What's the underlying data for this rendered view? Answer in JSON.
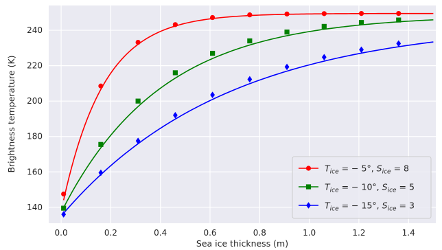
{
  "chart_data": {
    "type": "line",
    "xlabel": "Sea ice thickness (m)",
    "ylabel": "Brightness temperature (K)",
    "xlim": [
      -0.05,
      1.51
    ],
    "ylim": [
      131,
      254
    ],
    "xticks": [
      0.0,
      0.2,
      0.4,
      0.6,
      0.8,
      1.0,
      1.2,
      1.4
    ],
    "xtick_labels": [
      "0.0",
      "0.2",
      "0.4",
      "0.6",
      "0.8",
      "1.0",
      "1.2",
      "1.4"
    ],
    "yticks": [
      140,
      160,
      180,
      200,
      220,
      240
    ],
    "ytick_labels": [
      "140",
      "160",
      "180",
      "200",
      "220",
      "240"
    ],
    "grid": true,
    "legend_position": "lower-right",
    "series": [
      {
        "name": "T_ice = -5°, S_ice = 8",
        "name_parts": {
          "t": "T",
          "tsub": "ice",
          "tval": " = − 5°, ",
          "s": "S",
          "ssub": "ice",
          "sval": " = 8"
        },
        "color": "#ff0000",
        "marker": "circle",
        "x": [
          0.01,
          0.16,
          0.31,
          0.46,
          0.61,
          0.76,
          0.91,
          1.06,
          1.21,
          1.36
        ],
        "y": [
          147.5,
          208.5,
          233.2,
          243.2,
          247.2,
          248.7,
          249.2,
          249.4,
          249.5,
          249.5
        ],
        "curve": {
          "A": 249.5,
          "B": 112.0,
          "k": 6.0,
          "x_end": 1.5
        }
      },
      {
        "name": "T_ice = -10°, S_ice = 5",
        "name_parts": {
          "t": "T",
          "tsub": "ice",
          "tval": " = − 10°, ",
          "s": "S",
          "ssub": "ice",
          "sval": " = 5"
        },
        "color": "#008000",
        "marker": "square",
        "x": [
          0.01,
          0.16,
          0.31,
          0.46,
          0.61,
          0.76,
          0.91,
          1.06,
          1.21,
          1.36
        ],
        "y": [
          139.5,
          175.5,
          200.0,
          216.0,
          227.0,
          234.0,
          239.0,
          242.2,
          244.4,
          245.8
        ],
        "curve": {
          "A": 248.6,
          "B": 111.5,
          "k": 2.48,
          "x_end": 1.5
        }
      },
      {
        "name": "T_ice = -15°, S_ice = 3",
        "name_parts": {
          "t": "T",
          "tsub": "ice",
          "tval": " = − 15°, ",
          "s": "S",
          "ssub": "ice",
          "sval": " = 3"
        },
        "color": "#0000ff",
        "marker": "diamond",
        "x": [
          0.01,
          0.16,
          0.31,
          0.46,
          0.61,
          0.76,
          0.91,
          1.06,
          1.21,
          1.36
        ],
        "y": [
          136.0,
          159.5,
          177.5,
          192.0,
          203.5,
          212.3,
          219.3,
          224.8,
          229.0,
          232.5
        ],
        "curve": {
          "A": 245.0,
          "B": 110.0,
          "k": 1.5,
          "x_end": 1.5
        }
      }
    ]
  }
}
